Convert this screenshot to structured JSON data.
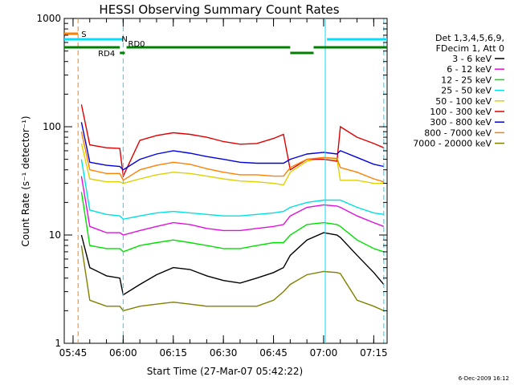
{
  "chart_data": {
    "type": "line",
    "title": "HESSI Observing Summary Count Rates",
    "xlabel": "Start Time (27-Mar-07 05:42:22)",
    "ylabel": "Count Rate (s⁻¹ detector⁻¹)",
    "yscale": "log",
    "ylim": [
      1,
      1000
    ],
    "xlim": [
      "05:42:22",
      "07:19:00"
    ],
    "x_ticks": [
      "05:45",
      "06:00",
      "06:15",
      "06:30",
      "06:45",
      "07:00",
      "07:15"
    ],
    "y_ticks": [
      "1",
      "10",
      "100",
      "1000"
    ],
    "legend_position": "right",
    "legend_header": [
      "Det 1,3,4,5,6,9,",
      "FDecim 1, Att 0"
    ],
    "timestamp": "6-Dec-2009 16:12",
    "x_sample_times": [
      "05:47:30",
      "05:50",
      "05:55",
      "05:59",
      "06:00",
      "06:05",
      "06:10",
      "06:15",
      "06:20",
      "06:25",
      "06:30",
      "06:35",
      "06:40",
      "06:45",
      "06:48",
      "06:50",
      "06:55",
      "07:00",
      "07:04",
      "07:05",
      "07:10",
      "07:15",
      "07:18"
    ],
    "series": [
      {
        "name": "3 - 6 keV",
        "color": "#000000",
        "values": [
          10,
          5,
          4.2,
          4,
          2.8,
          3.5,
          4.3,
          5,
          4.8,
          4.2,
          3.8,
          3.6,
          4,
          4.5,
          5,
          6.5,
          9,
          10.5,
          10,
          9.5,
          6.5,
          4.5,
          3.5
        ]
      },
      {
        "name": "6 - 12 keV",
        "color": "#e010e0",
        "values": [
          35,
          12,
          10.5,
          10.5,
          10,
          11,
          12,
          13,
          12.5,
          11.5,
          11,
          11,
          11.5,
          12,
          12.5,
          15,
          18,
          19,
          18.5,
          18,
          15,
          13,
          12
        ]
      },
      {
        "name": "12 - 25 keV",
        "color": "#00e000",
        "values": [
          25,
          8,
          7.5,
          7.5,
          7,
          8,
          8.5,
          9,
          8.5,
          8,
          7.5,
          7.5,
          8,
          8.5,
          8.5,
          10,
          12.5,
          13,
          12.5,
          12,
          9,
          7.5,
          7
        ]
      },
      {
        "name": "25 - 50 keV",
        "color": "#00e0e0",
        "values": [
          50,
          17,
          15.5,
          15,
          14,
          15,
          16,
          16.5,
          16,
          15.5,
          15,
          15,
          15.5,
          16,
          16.5,
          18,
          20,
          21,
          21,
          21,
          18,
          16,
          15.5
        ]
      },
      {
        "name": "50 - 100 keV",
        "color": "#e0d000",
        "values": [
          70,
          33,
          31,
          31,
          30,
          33,
          36,
          38,
          37,
          35,
          33,
          31.5,
          31,
          30,
          29,
          38,
          48,
          52,
          50,
          32,
          32,
          30,
          30
        ]
      },
      {
        "name": "100 - 300 keV",
        "color": "#e00000",
        "values": [
          160,
          68,
          64,
          63,
          35,
          75,
          83,
          88,
          85,
          80,
          73,
          69,
          70,
          78,
          85,
          40,
          50,
          50,
          48,
          100,
          80,
          70,
          64
        ]
      },
      {
        "name": "300 - 800 keV",
        "color": "#0000e0",
        "values": [
          110,
          47,
          44,
          43,
          40,
          50,
          56,
          60,
          57,
          53,
          50,
          47,
          46,
          46,
          46,
          50,
          56,
          58,
          56,
          60,
          52,
          45,
          43
        ]
      },
      {
        "name": "800 - 7000 keV",
        "color": "#ff8000",
        "values": [
          90,
          40,
          37,
          37,
          32,
          40,
          44,
          47,
          45,
          41,
          38,
          36,
          36,
          35,
          35,
          42,
          50,
          52,
          51,
          42,
          38,
          33,
          31
        ]
      },
      {
        "name": "7000 - 20000 keV",
        "color": "#808000",
        "values": [
          8,
          2.5,
          2.2,
          2.2,
          2.0,
          2.2,
          2.3,
          2.4,
          2.3,
          2.2,
          2.2,
          2.2,
          2.2,
          2.5,
          3,
          3.5,
          4.3,
          4.6,
          4.5,
          4.4,
          2.5,
          2.2,
          2.0
        ]
      }
    ],
    "flags": {
      "S": {
        "label": "S",
        "color": "#ff8000",
        "start": "05:42:22",
        "end": "05:46:30"
      },
      "N": {
        "label": "N",
        "color": "#00e0ff",
        "segments": [
          [
            "05:42:22",
            "06:00"
          ],
          [
            "07:01",
            "07:19"
          ]
        ]
      },
      "RD0": {
        "label": "RD0",
        "color": "#008000",
        "segments": [
          [
            "05:42:22",
            "05:59"
          ],
          [
            "06:01",
            "06:50"
          ],
          [
            "06:57",
            "07:19"
          ]
        ]
      },
      "RD4": {
        "label": "RD4",
        "color": "#008000",
        "segments": [
          [
            "05:59",
            "06:00:30"
          ],
          [
            "06:50",
            "06:57"
          ]
        ]
      }
    },
    "vertical_markers": [
      {
        "time": "05:46:30",
        "color": "#ff8000",
        "style": "dashed"
      },
      {
        "time": "06:00",
        "color": "#00e0ff",
        "style": "dashed"
      },
      {
        "time": "07:00:30",
        "color": "#00e0ff",
        "style": "solid"
      },
      {
        "time": "07:18",
        "color": "#00e0ff",
        "style": "dashed"
      }
    ]
  }
}
